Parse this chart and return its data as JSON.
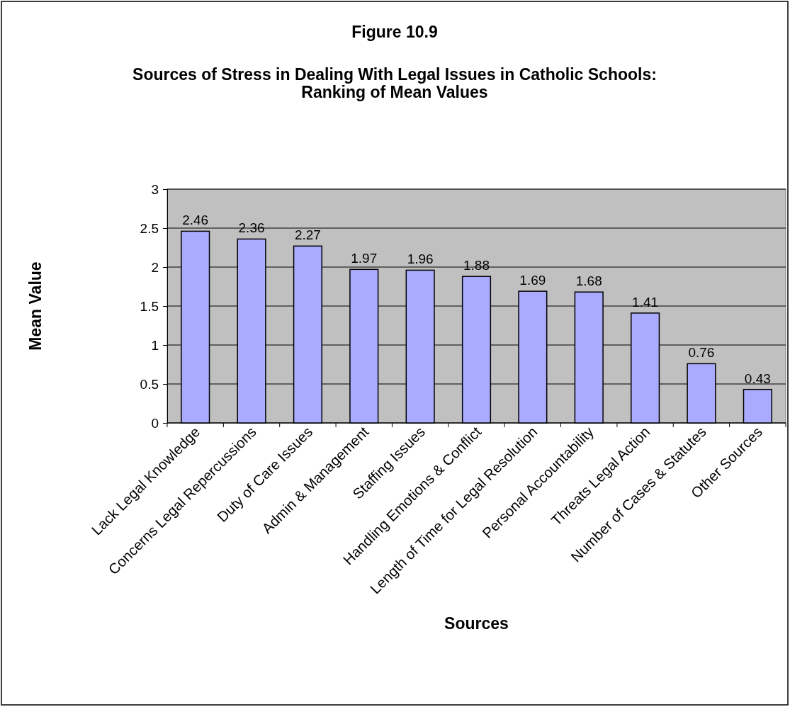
{
  "chart_data": {
    "type": "bar",
    "title": "Figure 10.9",
    "subtitle": "Sources of Stress in Dealing With Legal Issues in Catholic Schools: Ranking of Mean Values",
    "xlabel": "Sources",
    "ylabel": "Mean Value",
    "categories": [
      "Lack Legal Knowledge",
      "Concerns Legal Repercussions",
      "Duty of Care Issues",
      "Admin & Management",
      "Staffing Issues",
      "Handling Emotions & Conflict",
      "Length of Time for Legal Resolution",
      "Personal Accountability",
      "Threats Legal Action",
      "Number of Cases & Statutes",
      "Other Sources"
    ],
    "values": [
      2.46,
      2.36,
      2.27,
      1.97,
      1.96,
      1.88,
      1.69,
      1.68,
      1.41,
      0.76,
      0.43
    ],
    "color": "#aaaaff",
    "ylim": [
      0,
      3
    ],
    "yticks": [
      0,
      0.5,
      1,
      1.5,
      2,
      2.5,
      3
    ],
    "grid": "y",
    "data_labels": true
  }
}
